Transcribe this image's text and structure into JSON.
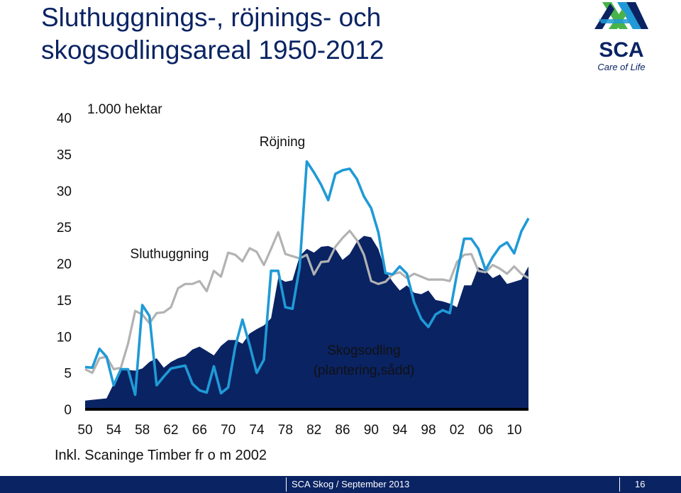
{
  "slide": {
    "title_line1": "Sluthuggnings-, röjnings- och",
    "title_line2": "skogsodlingsareal 1950-2012",
    "unit_label": "1.000 hektar",
    "note": "Inkl. Scaninge Timber fr o m 2002",
    "footer_text": "SCA Skog / September 2013",
    "page_number": "16"
  },
  "logo": {
    "name": "SCA",
    "tagline": "Care of Life",
    "colors": {
      "green": "#48b34a",
      "blue": "#1f9ad6",
      "navy": "#0a2363"
    }
  },
  "chart_data": {
    "type": "line",
    "ylim": [
      0,
      40
    ],
    "xlim": [
      1950,
      2012
    ],
    "yticks": [
      0,
      5,
      10,
      15,
      20,
      25,
      30,
      35,
      40
    ],
    "xticks": [
      "50",
      "54",
      "58",
      "62",
      "66",
      "70",
      "74",
      "78",
      "82",
      "86",
      "90",
      "94",
      "98",
      "02",
      "06",
      "10"
    ],
    "annotations": [
      {
        "text": "Röjning",
        "series": "Röjning"
      },
      {
        "text": "Sluthuggning",
        "series": "Sluthuggning"
      },
      {
        "text": "Skogsodling",
        "series": "Skogsodling"
      },
      {
        "text": "(plantering,sådd)",
        "series": "Skogsodling"
      }
    ],
    "x": [
      1950,
      1951,
      1952,
      1953,
      1954,
      1955,
      1956,
      1957,
      1958,
      1959,
      1960,
      1961,
      1962,
      1963,
      1964,
      1965,
      1966,
      1967,
      1968,
      1969,
      1970,
      1971,
      1972,
      1973,
      1974,
      1975,
      1976,
      1977,
      1978,
      1979,
      1980,
      1981,
      1982,
      1983,
      1984,
      1985,
      1986,
      1987,
      1988,
      1989,
      1990,
      1991,
      1992,
      1993,
      1994,
      1995,
      1996,
      1997,
      1998,
      1999,
      2000,
      2001,
      2002,
      2003,
      2004,
      2005,
      2006,
      2007,
      2008,
      2009,
      2010,
      2011,
      2012
    ],
    "series": [
      {
        "name": "Skogsodling",
        "kind": "area",
        "color": "#0a2363",
        "values": [
          1.2,
          1.3,
          1.4,
          1.5,
          3.5,
          5.5,
          5.4,
          5.3,
          5.6,
          6.5,
          7.0,
          5.7,
          6.5,
          7.0,
          7.3,
          8.2,
          8.6,
          8.0,
          7.4,
          8.7,
          9.5,
          9.5,
          9.0,
          10.4,
          11.0,
          11.5,
          12.5,
          18.0,
          17.5,
          17.7,
          21.0,
          22.0,
          21.5,
          22.3,
          22.4,
          22.0,
          20.5,
          21.3,
          23.0,
          23.8,
          23.6,
          22.0,
          19.0,
          17.5,
          16.3,
          17.0,
          16.0,
          15.8,
          16.3,
          15.0,
          14.8,
          14.5,
          14.0,
          17.0,
          17.0,
          19.5,
          19.0,
          18.0,
          18.5,
          17.2,
          17.5,
          17.8,
          19.6
        ]
      },
      {
        "name": "Sluthuggning",
        "kind": "line",
        "color": "#b2b2b2",
        "values": [
          5.5,
          5.0,
          7.0,
          7.2,
          5.5,
          5.7,
          9.0,
          13.5,
          13.0,
          11.8,
          13.2,
          13.3,
          14.0,
          16.6,
          17.2,
          17.2,
          17.6,
          16.2,
          19.0,
          18.2,
          21.5,
          21.2,
          20.3,
          22.1,
          21.6,
          19.8,
          22.0,
          24.3,
          21.3,
          21.0,
          20.7,
          21.2,
          18.5,
          20.2,
          20.3,
          22.3,
          23.5,
          24.5,
          23.2,
          21.2,
          17.6,
          17.2,
          17.5,
          18.5,
          18.8,
          18.0,
          18.6,
          18.2,
          17.8,
          17.8,
          17.8,
          17.6,
          20.2,
          21.2,
          21.3,
          19.0,
          18.8,
          19.8,
          19.3,
          18.6,
          19.6,
          18.6,
          18.0
        ]
      },
      {
        "name": "Röjning",
        "kind": "line",
        "color": "#1f9ad6",
        "values": [
          5.8,
          5.7,
          8.3,
          7.2,
          3.3,
          5.5,
          5.5,
          2.0,
          14.3,
          12.8,
          3.3,
          4.5,
          5.6,
          5.8,
          6.0,
          3.5,
          2.6,
          2.3,
          5.9,
          2.2,
          3.0,
          8.6,
          12.3,
          8.8,
          5.0,
          6.8,
          19.0,
          19.0,
          14.0,
          13.8,
          19.5,
          34.0,
          32.5,
          30.8,
          28.7,
          32.3,
          32.8,
          33.0,
          31.6,
          29.2,
          27.6,
          24.3,
          18.7,
          18.5,
          19.6,
          18.6,
          14.7,
          12.4,
          11.3,
          13.0,
          13.6,
          13.2,
          18.6,
          23.4,
          23.4,
          22.0,
          19.1,
          20.9,
          22.3,
          22.9,
          21.4,
          24.4,
          26.2
        ]
      }
    ]
  }
}
